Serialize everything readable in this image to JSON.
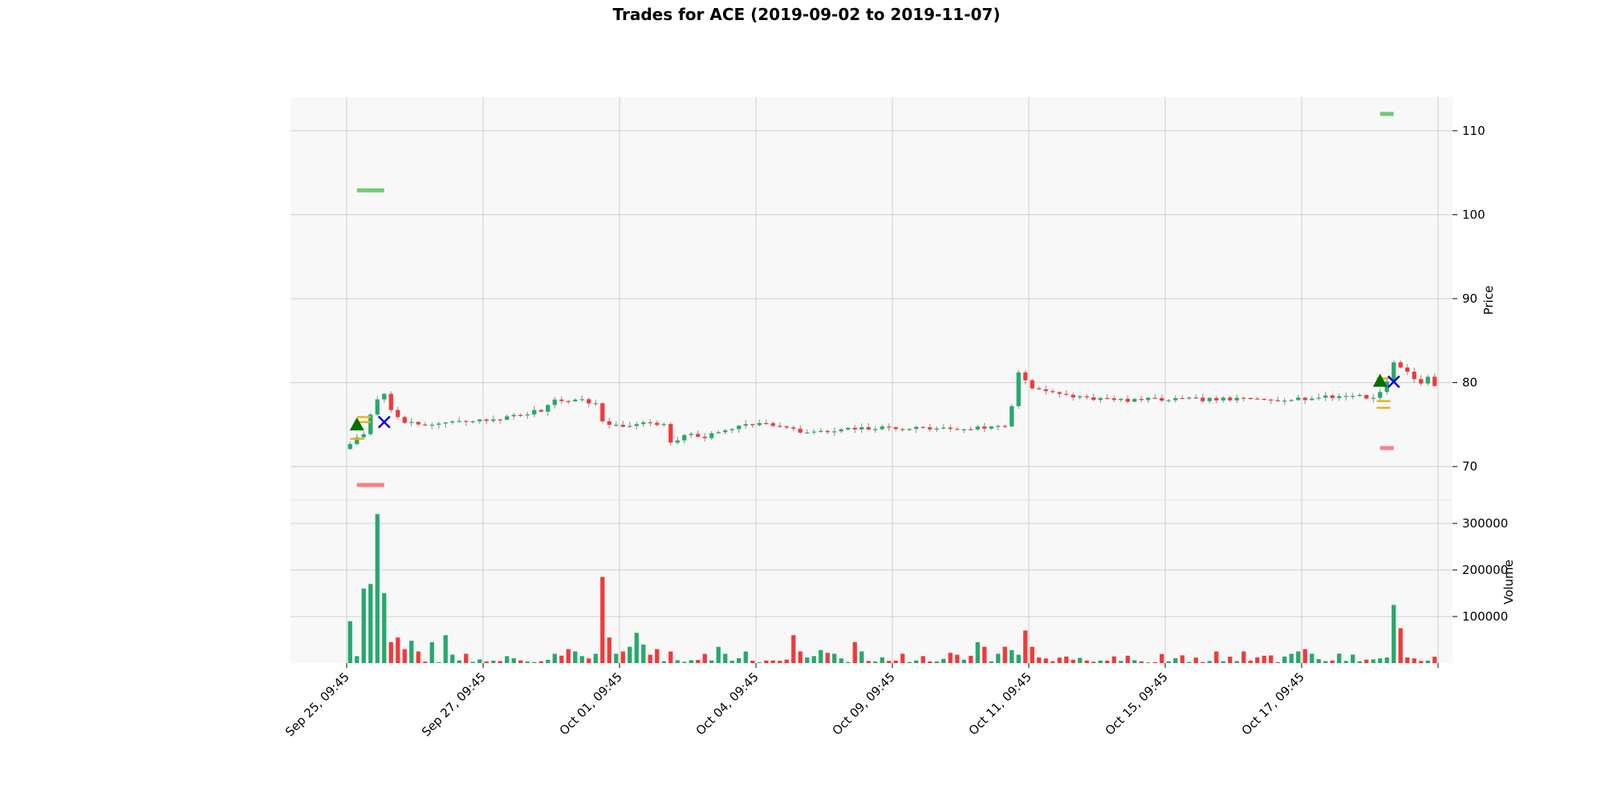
{
  "chart_data": {
    "type": "candlestick",
    "title": "Trades for ACE (2019-09-02 to 2019-11-07)",
    "price_axis": {
      "label": "Price",
      "ticks": [
        70,
        80,
        90,
        100,
        110
      ],
      "ylim": [
        66,
        114
      ]
    },
    "volume_axis": {
      "label": "Volume",
      "ticks": [
        100000,
        200000,
        300000
      ],
      "ylim": [
        0,
        350000
      ]
    },
    "x_ticks": [
      "Sep 25, 09:45",
      "Sep 27, 09:45",
      "Oct 01, 09:45",
      "Oct 04, 09:45",
      "Oct 09, 09:45",
      "Oct 11, 09:45",
      "Oct 15, 09:45",
      "Oct 17, 09:45"
    ],
    "bar_count": 160,
    "x_tick_bars": [
      0,
      20,
      40,
      60,
      80,
      100,
      120,
      140,
      160
    ],
    "price_keypoints": [
      [
        0,
        72.8
      ],
      [
        1,
        73.3
      ],
      [
        2,
        73.8
      ],
      [
        3,
        76.0
      ],
      [
        4,
        78.2
      ],
      [
        5,
        78.5
      ],
      [
        6,
        76.8
      ],
      [
        8,
        75.4
      ],
      [
        10,
        74.8
      ],
      [
        14,
        75.2
      ],
      [
        20,
        75.5
      ],
      [
        24,
        76.0
      ],
      [
        28,
        76.7
      ],
      [
        30,
        78.0
      ],
      [
        34,
        77.9
      ],
      [
        36,
        77.5
      ],
      [
        37,
        75.2
      ],
      [
        40,
        74.8
      ],
      [
        44,
        75.3
      ],
      [
        46,
        74.9
      ],
      [
        47,
        72.8
      ],
      [
        50,
        73.9
      ],
      [
        52,
        73.5
      ],
      [
        56,
        74.6
      ],
      [
        58,
        75.2
      ],
      [
        62,
        75.0
      ],
      [
        66,
        74.1
      ],
      [
        70,
        74.1
      ],
      [
        74,
        74.5
      ],
      [
        80,
        74.6
      ],
      [
        90,
        74.5
      ],
      [
        96,
        74.8
      ],
      [
        97,
        77.3
      ],
      [
        98,
        81.2
      ],
      [
        100,
        79.5
      ],
      [
        104,
        78.5
      ],
      [
        112,
        77.9
      ],
      [
        120,
        78.0
      ],
      [
        130,
        78.0
      ],
      [
        140,
        78.1
      ],
      [
        148,
        78.5
      ],
      [
        150,
        78.1
      ],
      [
        151,
        79.2
      ],
      [
        152,
        80.2
      ],
      [
        153,
        82.8
      ],
      [
        154,
        81.5
      ],
      [
        156,
        80.5
      ],
      [
        158,
        80.2
      ],
      [
        159,
        80.1
      ]
    ],
    "price_seed": 7,
    "volume_seed": 11,
    "volume_peaks": [
      [
        0,
        90000
      ],
      [
        1,
        15000
      ],
      [
        2,
        160000
      ],
      [
        3,
        170000
      ],
      [
        4,
        320000
      ],
      [
        5,
        150000
      ],
      [
        6,
        45000
      ],
      [
        7,
        55000
      ],
      [
        8,
        30000
      ],
      [
        9,
        48000
      ],
      [
        10,
        25000
      ],
      [
        12,
        45000
      ],
      [
        14,
        60000
      ],
      [
        17,
        20000
      ],
      [
        23,
        15000
      ],
      [
        30,
        20000
      ],
      [
        32,
        30000
      ],
      [
        33,
        25000
      ],
      [
        34,
        15000
      ],
      [
        35,
        10000
      ],
      [
        36,
        20000
      ],
      [
        37,
        185000
      ],
      [
        38,
        55000
      ],
      [
        39,
        20000
      ],
      [
        40,
        25000
      ],
      [
        41,
        35000
      ],
      [
        42,
        65000
      ],
      [
        43,
        40000
      ],
      [
        44,
        18000
      ],
      [
        45,
        30000
      ],
      [
        47,
        25000
      ],
      [
        54,
        35000
      ],
      [
        55,
        20000
      ],
      [
        58,
        25000
      ],
      [
        65,
        60000
      ],
      [
        66,
        25000
      ],
      [
        67,
        12000
      ],
      [
        68,
        15000
      ],
      [
        69,
        28000
      ],
      [
        70,
        22000
      ],
      [
        71,
        20000
      ],
      [
        72,
        10000
      ],
      [
        74,
        45000
      ],
      [
        75,
        25000
      ],
      [
        81,
        20000
      ],
      [
        84,
        15000
      ],
      [
        88,
        22000
      ],
      [
        89,
        18000
      ],
      [
        92,
        45000
      ],
      [
        93,
        35000
      ],
      [
        95,
        20000
      ],
      [
        96,
        35000
      ],
      [
        97,
        28000
      ],
      [
        98,
        18000
      ],
      [
        99,
        70000
      ],
      [
        100,
        35000
      ],
      [
        101,
        12000
      ],
      [
        127,
        25000
      ],
      [
        131,
        25000
      ],
      [
        133,
        12000
      ],
      [
        138,
        20000
      ],
      [
        139,
        25000
      ],
      [
        140,
        30000
      ],
      [
        141,
        20000
      ],
      [
        150,
        8000
      ],
      [
        151,
        10000
      ],
      [
        152,
        12000
      ],
      [
        153,
        125000
      ],
      [
        154,
        75000
      ],
      [
        155,
        12000
      ],
      [
        156,
        10000
      ]
    ],
    "trade_markers": [
      {
        "type": "entry",
        "shape": "triangle-up",
        "color": "#007000",
        "bar": 1.5,
        "price": 75.0
      },
      {
        "type": "exit",
        "shape": "x",
        "color": "#0000e0",
        "bar": 5.5,
        "price": 75.3
      },
      {
        "type": "entry",
        "shape": "triangle-up",
        "color": "#007000",
        "bar": 151.5,
        "price": 80.2
      },
      {
        "type": "exit",
        "shape": "x",
        "color": "#0000e0",
        "bar": 153.5,
        "price": 80.1
      }
    ],
    "levels": [
      {
        "kind": "take-profit",
        "color": "#6cc66c",
        "bar_start": 1.5,
        "bar_end": 5.5,
        "price": 102.9
      },
      {
        "kind": "stop-loss",
        "color": "#ff7b7b",
        "bar_start": 1.5,
        "bar_end": 5.5,
        "price": 67.8
      },
      {
        "kind": "take-profit",
        "color": "#6cc66c",
        "bar_start": 151.5,
        "bar_end": 153.5,
        "price": 112.0
      },
      {
        "kind": "stop-loss",
        "color": "#ff7b7b",
        "bar_start": 151.5,
        "bar_end": 153.5,
        "price": 72.2
      },
      {
        "kind": "level",
        "color": "#e5b51a",
        "bar_start": 0.5,
        "bar_end": 2.5,
        "price": 73.3
      },
      {
        "kind": "level",
        "color": "#e5b51a",
        "bar_start": 1.5,
        "bar_end": 3.5,
        "price": 75.3
      },
      {
        "kind": "level",
        "color": "#e5b51a",
        "bar_start": 1.5,
        "bar_end": 3.5,
        "price": 75.9
      },
      {
        "kind": "level",
        "color": "#e5b51a",
        "bar_start": 151.0,
        "bar_end": 153.0,
        "price": 77.0
      },
      {
        "kind": "level",
        "color": "#e5b51a",
        "bar_start": 151.0,
        "bar_end": 153.0,
        "price": 77.8
      },
      {
        "kind": "level",
        "color": "#e5b51a",
        "bar_start": 151.0,
        "bar_end": 153.0,
        "price": 80.5
      }
    ],
    "colors": {
      "up": "#26a96c",
      "down": "#f03a3a",
      "grid": "#cfcfcf",
      "panel_bg": "#f8f8f8"
    },
    "grid": true
  }
}
